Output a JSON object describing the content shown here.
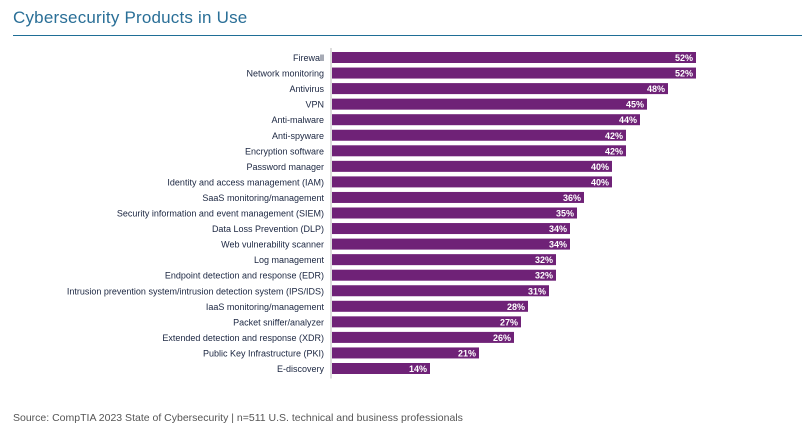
{
  "chart_data": {
    "type": "bar",
    "orientation": "horizontal",
    "title": "Cybersecurity Products in Use",
    "categories": [
      "Firewall",
      "Network monitoring",
      "Antivirus",
      "VPN",
      "Anti-malware",
      "Anti-spyware",
      "Encryption software",
      "Password manager",
      "Identity and access management (IAM)",
      "SaaS monitoring/management",
      "Security information and event management (SIEM)",
      "Data Loss Prevention (DLP)",
      "Web vulnerability scanner",
      "Log management",
      "Endpoint detection and response (EDR)",
      "Intrusion prevention system/intrusion detection system (IPS/IDS)",
      "IaaS monitoring/management",
      "Packet sniffer/analyzer",
      "Extended detection and response (XDR)",
      "Public Key Infrastructure (PKI)",
      "E-discovery"
    ],
    "values": [
      52,
      52,
      48,
      45,
      44,
      42,
      42,
      40,
      40,
      36,
      35,
      34,
      34,
      32,
      32,
      31,
      28,
      27,
      26,
      21,
      14
    ],
    "data_labels": [
      "52%",
      "52%",
      "48%",
      "45%",
      "44%",
      "42%",
      "42%",
      "40%",
      "40%",
      "36%",
      "35%",
      "34%",
      "34%",
      "32%",
      "32%",
      "31%",
      "28%",
      "27%",
      "26%",
      "21%",
      "14%"
    ],
    "unit": "%",
    "bar_color": "#6f2277",
    "grid": false,
    "legend": "none"
  },
  "source": "Source: CompTIA 2023 State of Cybersecurity | n=511 U.S. technical and business professionals"
}
